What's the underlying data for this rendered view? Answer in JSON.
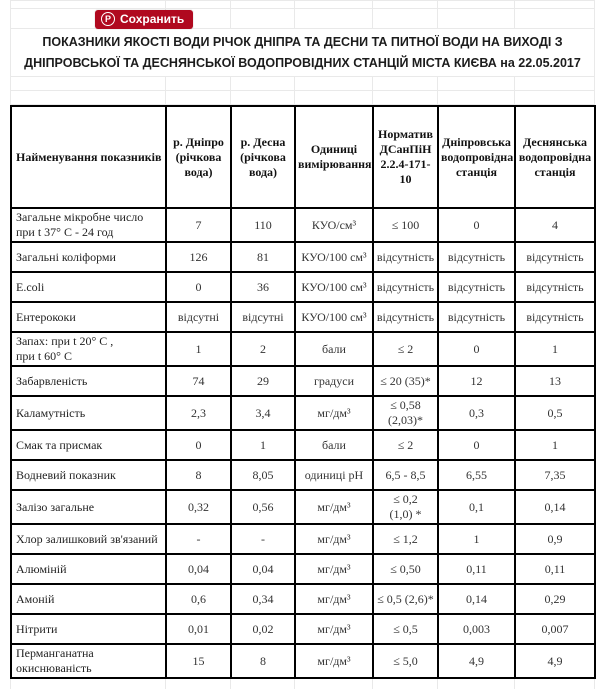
{
  "pinterest": {
    "save_label": "Сохранить",
    "icon_letter": "P",
    "color": "#b0091f"
  },
  "title": "ПОКАЗНИКИ ЯКОСТІ ВОДИ РІЧОК ДНІПРА ТА ДЕСНИ ТА ПИТНОЇ ВОДИ НА ВИХОДІ З ДНІПРОВСЬКОЇ ТА ДЕСНЯНСЬКОЇ ВОДОПРОВІДНИХ СТАНЦІЙ МІСТА КИЄВА на 22.05.2017",
  "colors": {
    "table_border": "#000000",
    "grid_line": "#e9e9e9",
    "text": "#333333"
  },
  "table": {
    "columns": [
      "Найменування показників",
      "р. Дніпро (річкова вода)",
      "р. Десна (річкова вода)",
      "Одиниці вимірювання",
      "Норматив ДСанПіН 2.2.4-171-10",
      "Дніпровська водопровідна станція",
      "Деснянська водопровідна станція"
    ],
    "rows": [
      {
        "name": "Загальне мікробне число при t 37° С - 24 год",
        "dnipro_river": "7",
        "desna_river": "110",
        "units": "КУО/см³",
        "norm": "≤ 100",
        "dnipro_station": "0",
        "desna_station": "4"
      },
      {
        "name": "Загальні коліформи",
        "dnipro_river": "126",
        "desna_river": "81",
        "units": "КУО/100 см³",
        "norm": "відсутність",
        "dnipro_station": "відсутність",
        "desna_station": "відсутність"
      },
      {
        "name": "E.coli",
        "dnipro_river": "0",
        "desna_river": "36",
        "units": "КУО/100 см³",
        "norm": "відсутність",
        "dnipro_station": "відсутність",
        "desna_station": "відсутність"
      },
      {
        "name": "Ентерококи",
        "dnipro_river": "відсутні",
        "desna_river": "відсутні",
        "units": "КУО/100 см³",
        "norm": "відсутність",
        "dnipro_station": "відсутність",
        "desna_station": "відсутність"
      },
      {
        "name": "Запах: при t 20° С ,\nпри t 60° С",
        "dnipro_river": "1",
        "desna_river": "2",
        "units": "бали",
        "norm": "≤ 2",
        "dnipro_station": "0",
        "desna_station": "1"
      },
      {
        "name": "Забарвленість",
        "dnipro_river": "74",
        "desna_river": "29",
        "units": "градуси",
        "norm": "≤ 20 (35)*",
        "dnipro_station": "12",
        "desna_station": "13"
      },
      {
        "name": "Каламутність",
        "dnipro_river": "2,3",
        "desna_river": "3,4",
        "units": "мг/дм³",
        "norm": "≤ 0,58\n(2,03)*",
        "dnipro_station": "0,3",
        "desna_station": "0,5"
      },
      {
        "name": "Смак та присмак",
        "dnipro_river": "0",
        "desna_river": "1",
        "units": "бали",
        "norm": "≤ 2",
        "dnipro_station": "0",
        "desna_station": "1"
      },
      {
        "name": "Водневий показник",
        "dnipro_river": "8",
        "desna_river": "8,05",
        "units": "одиниці рН",
        "norm": "6,5 - 8,5",
        "dnipro_station": "6,55",
        "desna_station": "7,35"
      },
      {
        "name": "Залізо загальне",
        "dnipro_river": "0,32",
        "desna_river": "0,56",
        "units": "мг/дм³",
        "norm": "≤ 0,2\n(1,0) *",
        "dnipro_station": "0,1",
        "desna_station": "0,14"
      },
      {
        "name": "Хлор залишковий зв'язаний",
        "dnipro_river": "-",
        "desna_river": "-",
        "units": "мг/дм³",
        "norm": "≤ 1,2",
        "dnipro_station": "1",
        "desna_station": "0,9"
      },
      {
        "name": "Алюміній",
        "dnipro_river": "0,04",
        "desna_river": "0,04",
        "units": "мг/дм³",
        "norm": "≤ 0,50",
        "dnipro_station": "0,11",
        "desna_station": "0,11"
      },
      {
        "name": "Амоній",
        "dnipro_river": "0,6",
        "desna_river": "0,34",
        "units": "мг/дм³",
        "norm": "≤ 0,5 (2,6)*",
        "dnipro_station": "0,14",
        "desna_station": "0,29"
      },
      {
        "name": "Нітрити",
        "dnipro_river": "0,01",
        "desna_river": "0,02",
        "units": "мг/дм³",
        "norm": "≤ 0,5",
        "dnipro_station": "0,003",
        "desna_station": "0,007"
      },
      {
        "name": "Перманганатна окиснюваність",
        "dnipro_river": "15",
        "desna_river": "8",
        "units": "мг/дм³",
        "norm": "≤ 5,0",
        "dnipro_station": "4,9",
        "desna_station": "4,9"
      }
    ]
  }
}
